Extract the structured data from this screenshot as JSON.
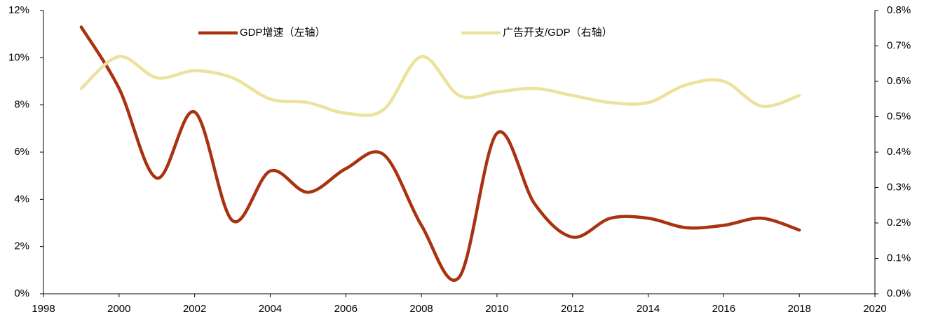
{
  "chart_data": {
    "type": "line",
    "x": [
      1999,
      2000,
      2001,
      2002,
      2003,
      2004,
      2005,
      2006,
      2007,
      2008,
      2009,
      2010,
      2011,
      2012,
      2013,
      2014,
      2015,
      2016,
      2017,
      2018
    ],
    "series": [
      {
        "name": "GDP增速（左轴）",
        "color": "#a93210",
        "values": [
          11.3,
          8.7,
          4.9,
          7.7,
          3.1,
          5.2,
          4.3,
          5.3,
          5.9,
          2.9,
          0.7,
          6.8,
          3.8,
          2.4,
          3.2,
          3.2,
          2.8,
          2.9,
          3.2,
          2.7
        ]
      },
      {
        "name": "广告开支/GDP（右轴）",
        "color": "#ede29c",
        "axis": "y2",
        "values": [
          0.58,
          0.67,
          0.61,
          0.63,
          0.61,
          0.55,
          0.54,
          0.51,
          0.52,
          0.67,
          0.56,
          0.57,
          0.58,
          0.56,
          0.54,
          0.54,
          0.59,
          0.6,
          0.53,
          0.56
        ]
      }
    ],
    "xlim": [
      1998,
      2020
    ],
    "xticks": [
      1998,
      2000,
      2002,
      2004,
      2006,
      2008,
      2010,
      2012,
      2014,
      2016,
      2018,
      2020
    ],
    "ylim": [
      0,
      12
    ],
    "yticks": [
      {
        "value": 0,
        "label": "0%"
      },
      {
        "value": 2,
        "label": "2%"
      },
      {
        "value": 4,
        "label": "4%"
      },
      {
        "value": 6,
        "label": "6%"
      },
      {
        "value": 8,
        "label": "8%"
      },
      {
        "value": 10,
        "label": "10%"
      },
      {
        "value": 12,
        "label": "12%"
      }
    ],
    "y2lim": [
      0,
      0.8
    ],
    "y2ticks": [
      {
        "value": 0,
        "label": "0.0%"
      },
      {
        "value": 0.1,
        "label": "0.1%"
      },
      {
        "value": 0.2,
        "label": "0.2%"
      },
      {
        "value": 0.3,
        "label": "0.3%"
      },
      {
        "value": 0.4,
        "label": "0.4%"
      },
      {
        "value": 0.5,
        "label": "0.5%"
      },
      {
        "value": 0.6,
        "label": "0.6%"
      },
      {
        "value": 0.7,
        "label": "0.7%"
      },
      {
        "value": 0.8,
        "label": "0.8%"
      }
    ],
    "legend": "top",
    "grid": false
  }
}
